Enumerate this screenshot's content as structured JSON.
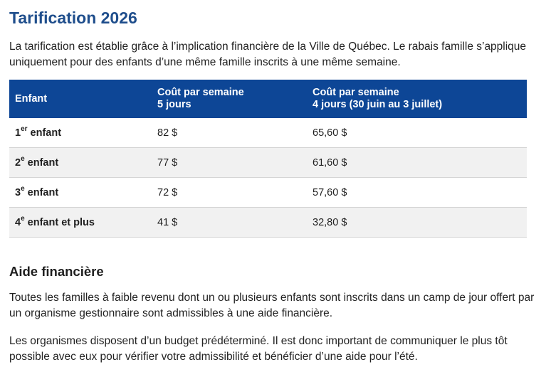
{
  "page": {
    "title": "Tarification 2026",
    "intro": "La tarification est établie grâce à l’implication financière de la Ville de Québec. Le rabais famille s’applique uniquement pour des enfants d’une même famille inscrits à une même semaine."
  },
  "table": {
    "headers": {
      "col1": "Enfant",
      "col2_line1": "Coût par semaine",
      "col2_line2": "5 jours",
      "col3_line1": "Coût par semaine",
      "col3_line2": "4 jours (30 juin au 3 juillet)"
    },
    "rows": [
      {
        "num": "1",
        "sup": "er",
        "label": " enfant",
        "price5": "82 $",
        "price4": "65,60 $"
      },
      {
        "num": "2",
        "sup": "e",
        "label": " enfant",
        "price5": "77 $",
        "price4": "61,60 $"
      },
      {
        "num": "3",
        "sup": "e",
        "label": " enfant",
        "price5": "72 $",
        "price4": "57,60 $"
      },
      {
        "num": "4",
        "sup": "e",
        "label": " enfant et plus",
        "price5": "41 $",
        "price4": "32,80 $"
      }
    ]
  },
  "aid": {
    "title": "Aide financière",
    "para1": "Toutes les familles à faible revenu dont un ou plusieurs enfants sont inscrits dans un camp de jour offert par un organisme gestionnaire sont admissibles à une aide financière.",
    "para2": "Les organismes disposent d’un budget prédéterminé. Il est donc important de communiquer le plus tôt possible avec eux pour vérifier votre admissibilité et bénéficier d’une aide pour l’été."
  },
  "colors": {
    "title": "#1f4e8c",
    "table_header_bg": "#0d4696",
    "row_alt_bg": "#f1f1f1"
  }
}
